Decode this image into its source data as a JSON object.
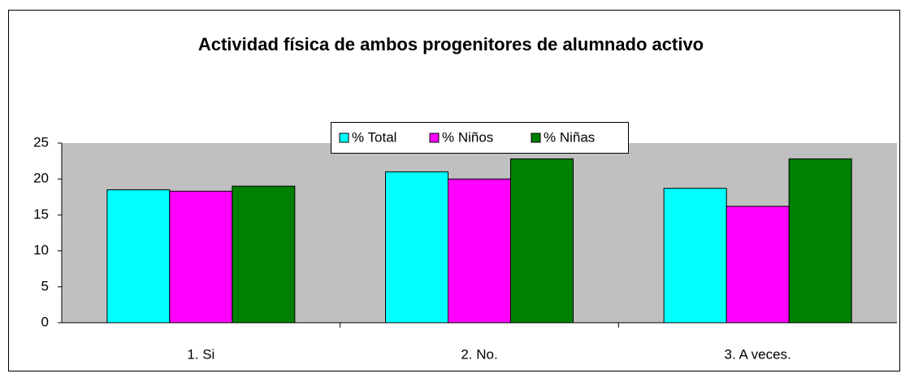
{
  "chart_data": {
    "type": "bar",
    "title": "Actividad física de ambos progenitores de alumnado activo",
    "categories": [
      "1. Si",
      "2. No.",
      "3. A veces."
    ],
    "series": [
      {
        "name": "% Total",
        "color": "#00ffff",
        "values": [
          18.5,
          21,
          18.7
        ]
      },
      {
        "name": "% Niños",
        "color": "#ff00ff",
        "values": [
          18.3,
          20,
          16.2
        ]
      },
      {
        "name": "% Niñas",
        "color": "#008000",
        "values": [
          19,
          22.8,
          22.8
        ]
      }
    ],
    "ylim": [
      0,
      25
    ],
    "yticks": [
      0,
      5,
      10,
      15,
      20,
      25
    ],
    "grid": false,
    "legend": "top"
  }
}
